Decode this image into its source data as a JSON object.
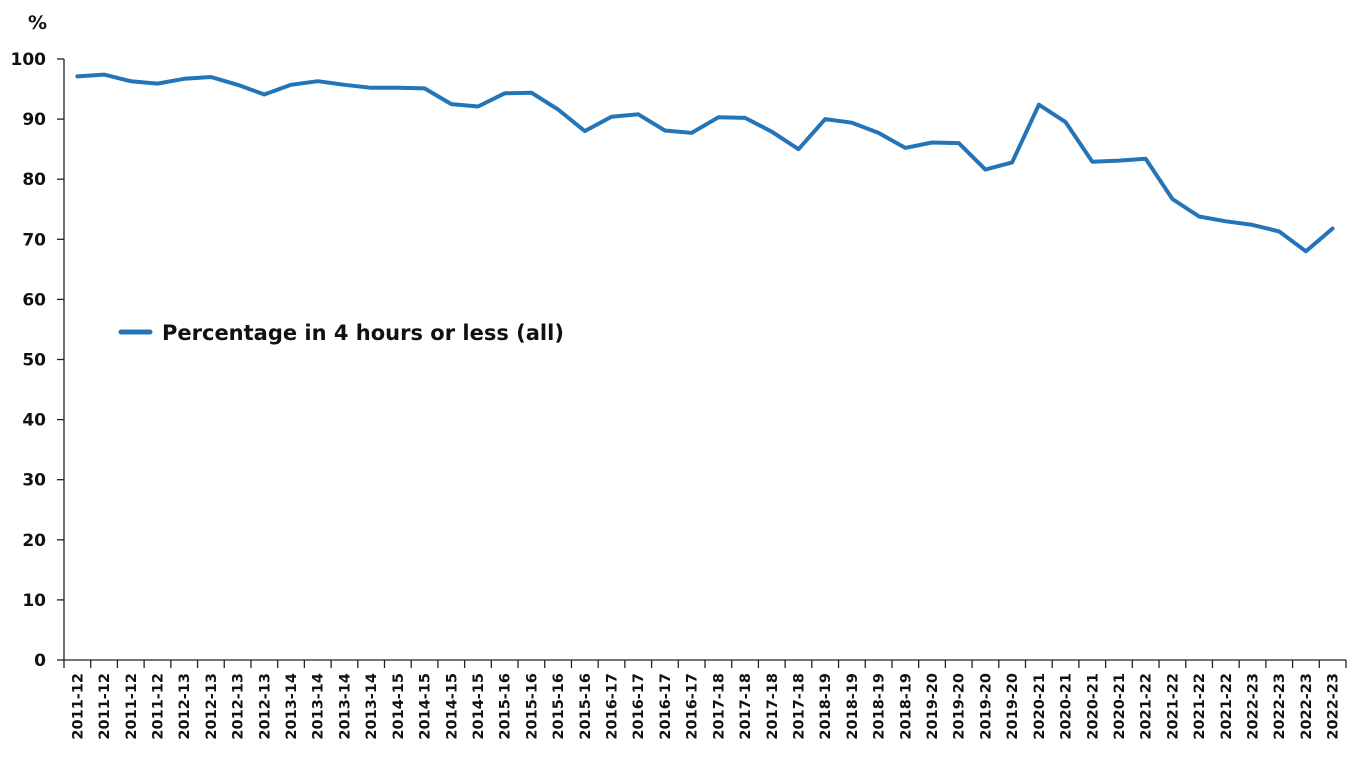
{
  "chart_data": {
    "type": "line",
    "title": "",
    "xlabel": "",
    "ylabel": "%",
    "ylim": [
      0,
      100
    ],
    "yticks": [
      0,
      10,
      20,
      30,
      40,
      50,
      60,
      70,
      80,
      90,
      100
    ],
    "grid": false,
    "legend_position": "center-left",
    "categories": [
      "2011-12",
      "2011-12",
      "2011-12",
      "2011-12",
      "2012-13",
      "2012-13",
      "2012-13",
      "2012-13",
      "2013-14",
      "2013-14",
      "2013-14",
      "2013-14",
      "2014-15",
      "2014-15",
      "2014-15",
      "2014-15",
      "2015-16",
      "2015-16",
      "2015-16",
      "2015-16",
      "2016-17",
      "2016-17",
      "2016-17",
      "2016-17",
      "2017-18",
      "2017-18",
      "2017-18",
      "2017-18",
      "2018-19",
      "2018-19",
      "2018-19",
      "2018-19",
      "2019-20",
      "2019-20",
      "2019-20",
      "2019-20",
      "2020-21",
      "2020-21",
      "2020-21",
      "2020-21",
      "2021-22",
      "2021-22",
      "2021-22",
      "2021-22",
      "2022-23",
      "2022-23",
      "2022-23",
      "2022-23"
    ],
    "series": [
      {
        "name": "Percentage in 4 hours or less (all)",
        "color": "#2474b8",
        "values": [
          97.1,
          97.4,
          96.3,
          95.9,
          96.7,
          97.0,
          95.7,
          94.1,
          95.7,
          96.3,
          95.7,
          95.2,
          95.2,
          95.1,
          92.5,
          92.1,
          94.3,
          94.4,
          91.6,
          88.0,
          90.4,
          90.8,
          88.1,
          87.7,
          90.3,
          90.2,
          87.9,
          85.0,
          90.0,
          89.4,
          87.7,
          85.2,
          86.1,
          86.0,
          81.6,
          82.8,
          92.4,
          89.5,
          82.9,
          83.1,
          83.4,
          76.7,
          73.8,
          73.0,
          72.4,
          71.3,
          68.0,
          71.8
        ]
      }
    ]
  }
}
